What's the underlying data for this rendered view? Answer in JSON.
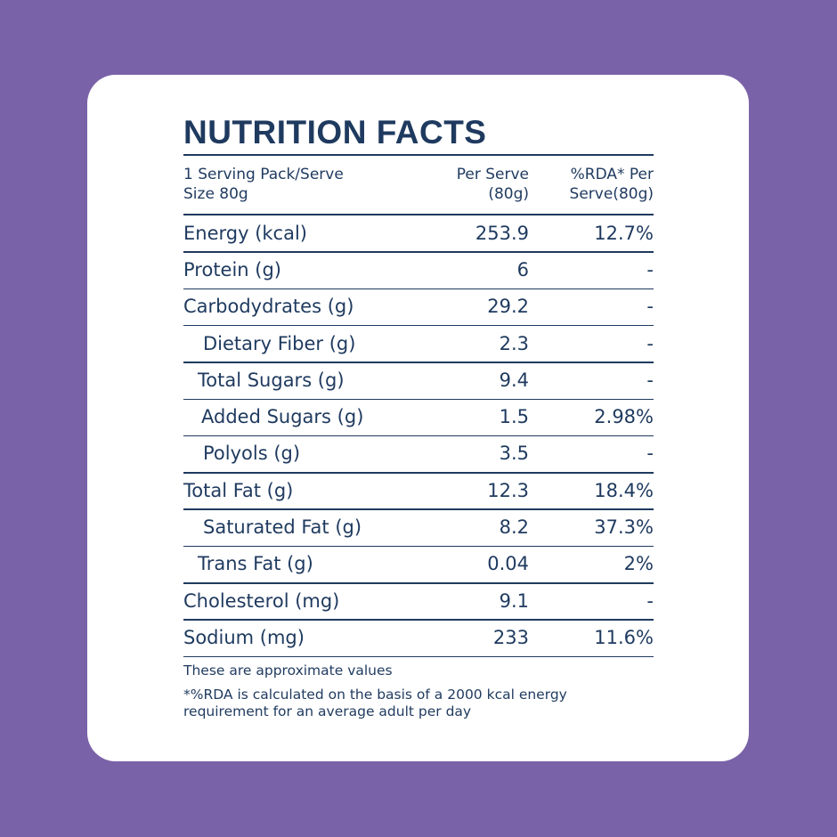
{
  "title": "NUTRITION FACTS",
  "header": {
    "cells": [
      [
        "1 Serving Pack/Serve",
        "Size 80g"
      ],
      [
        "Per Serve",
        "(80g)"
      ],
      [
        "%RDA* Per",
        "Serve(80g)"
      ]
    ]
  },
  "table": {
    "rows": [
      [
        "Energy (kcal)",
        "253.9",
        "12.7%"
      ],
      [
        "Protein (g)",
        "6",
        "-"
      ],
      [
        "Carbodydrates (g)",
        "29.2",
        "-"
      ],
      [
        "Dietary Fiber (g)",
        "2.3",
        "-"
      ],
      [
        "Total Sugars (g)",
        "9.4",
        "-"
      ],
      [
        "Added Sugars (g)",
        "1.5",
        "2.98%"
      ],
      [
        "Polyols (g)",
        "3.5",
        "-"
      ],
      [
        "Total Fat (g)",
        "12.3",
        "18.4%"
      ],
      [
        "Saturated Fat (g)",
        "8.2",
        "37.3%"
      ],
      [
        "Trans Fat (g)",
        "0.04",
        "2%"
      ],
      [
        "Cholesterol (mg)",
        "9.1",
        "-"
      ],
      [
        "Sodium (mg)",
        "233",
        "11.6%"
      ]
    ]
  },
  "notes": [
    "These are approximate values",
    "*%RDA is calculated on the basis of a 2000 kcal energy",
    "requirement for an average adult per day"
  ]
}
